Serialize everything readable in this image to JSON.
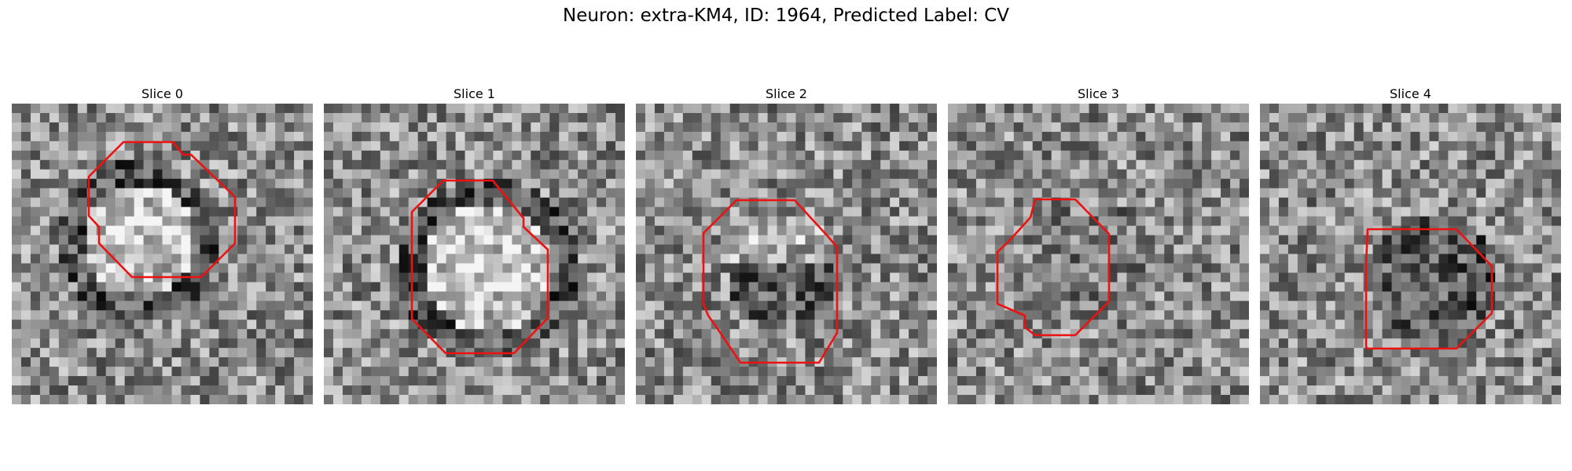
{
  "figure": {
    "title": "Neuron: extra-KM4, ID: 1964, Predicted Label: CV"
  },
  "panels": [
    {
      "title": "Slice 0",
      "seed": 11,
      "blob": "bright"
    },
    {
      "title": "Slice 1",
      "seed": 23,
      "blob": "bright"
    },
    {
      "title": "Slice 2",
      "seed": 37,
      "blob": "mixed"
    },
    {
      "title": "Slice 3",
      "seed": 51,
      "blob": "dim"
    },
    {
      "title": "Slice 4",
      "seed": 67,
      "blob": "dark"
    }
  ],
  "colors": {
    "outline": "#ee1111",
    "colormap": "gray"
  }
}
